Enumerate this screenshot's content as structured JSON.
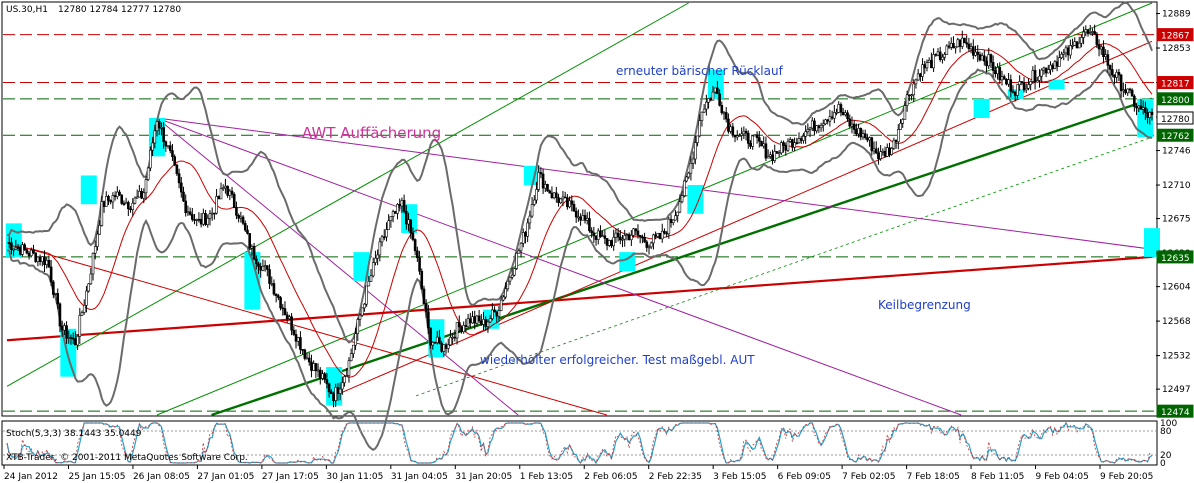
{
  "header": {
    "symbol": "US.30,H1",
    "ohlc": "12780 12784 12777 12780"
  },
  "annotations": {
    "awt": "AWT Auffächerung",
    "baerisch": "erneuter bärischer Rücklauf",
    "test": "wiederholter erfolgreicher. Test maßgebl. AUT",
    "keil": "Keilbegrenzung"
  },
  "stoch": {
    "label": "Stoch(5,3,3) 38.1443 35.0449",
    "levels": [
      "100",
      "80",
      "20",
      "0"
    ]
  },
  "footer": {
    "copyright": "XTB-Trader, © 2001-2011 MetaQuotes Software Corp."
  },
  "colors": {
    "candle": "#000000",
    "grid_dashed_green": "#006400",
    "resistance_red": "#cc0000",
    "trend_green": "#007000",
    "channel_green": "#009000",
    "fan_magenta": "#a020a0",
    "bollinger": "#6b6b6b",
    "ma_red": "#cc0000",
    "highlight_cyan": "#00ffff",
    "label_box_green": "#006400",
    "label_box_red": "#cc0000",
    "label_box_black": "#000000",
    "annotation_blue": "#1f3fcc",
    "annotation_magenta": "#cc3399"
  },
  "chart_data": {
    "type": "candlestick",
    "symbol": "US.30",
    "timeframe": "H1",
    "ylim": [
      12470,
      12900
    ],
    "y_ticks": [
      12889,
      12853,
      12817,
      12781,
      12746,
      12710,
      12675,
      12639,
      12604,
      12568,
      12532,
      12497
    ],
    "x_ticks": [
      "24 Jan 2012",
      "25 Jan 15:05",
      "26 Jan 08:05",
      "27 Jan 01:05",
      "27 Jan 17:05",
      "30 Jan 11:05",
      "31 Jan 04:05",
      "31 Jan 20:05",
      "1 Feb 13:05",
      "2 Feb 06:05",
      "2 Feb 22:35",
      "3 Feb 15:05",
      "6 Feb 09:05",
      "7 Feb 02:05",
      "7 Feb 18:05",
      "8 Feb 11:05",
      "9 Feb 04:05",
      "9 Feb 20:05"
    ],
    "levels": [
      {
        "value": 12867,
        "label": "12867",
        "color": "red"
      },
      {
        "value": 12817,
        "label": "12817",
        "color": "red"
      },
      {
        "value": 12800,
        "label": "12800",
        "color": "green"
      },
      {
        "value": 12780,
        "label": "12780",
        "color": "black"
      },
      {
        "value": 12762,
        "label": "12762",
        "color": "green"
      },
      {
        "value": 12635,
        "label": "12635",
        "color": "green"
      },
      {
        "value": 12474,
        "label": "12474",
        "color": "green"
      }
    ],
    "price_path": [
      [
        0,
        12650
      ],
      [
        3,
        12640
      ],
      [
        6,
        12630
      ],
      [
        8,
        12560
      ],
      [
        10,
        12545
      ],
      [
        12,
        12610
      ],
      [
        14,
        12690
      ],
      [
        16,
        12700
      ],
      [
        18,
        12690
      ],
      [
        20,
        12700
      ],
      [
        22,
        12780
      ],
      [
        24,
        12740
      ],
      [
        26,
        12690
      ],
      [
        28,
        12670
      ],
      [
        30,
        12680
      ],
      [
        32,
        12710
      ],
      [
        34,
        12680
      ],
      [
        36,
        12640
      ],
      [
        38,
        12620
      ],
      [
        40,
        12590
      ],
      [
        42,
        12560
      ],
      [
        44,
        12530
      ],
      [
        46,
        12510
      ],
      [
        48,
        12490
      ],
      [
        50,
        12520
      ],
      [
        52,
        12580
      ],
      [
        54,
        12630
      ],
      [
        56,
        12670
      ],
      [
        58,
        12690
      ],
      [
        60,
        12640
      ],
      [
        62,
        12550
      ],
      [
        64,
        12540
      ],
      [
        66,
        12560
      ],
      [
        68,
        12570
      ],
      [
        70,
        12565
      ],
      [
        72,
        12580
      ],
      [
        74,
        12620
      ],
      [
        76,
        12660
      ],
      [
        78,
        12720
      ],
      [
        80,
        12700
      ],
      [
        82,
        12690
      ],
      [
        84,
        12680
      ],
      [
        86,
        12660
      ],
      [
        88,
        12650
      ],
      [
        90,
        12655
      ],
      [
        92,
        12660
      ],
      [
        94,
        12650
      ],
      [
        96,
        12655
      ],
      [
        98,
        12680
      ],
      [
        100,
        12720
      ],
      [
        102,
        12790
      ],
      [
        104,
        12810
      ],
      [
        106,
        12770
      ],
      [
        108,
        12760
      ],
      [
        110,
        12755
      ],
      [
        112,
        12740
      ],
      [
        114,
        12750
      ],
      [
        116,
        12760
      ],
      [
        118,
        12770
      ],
      [
        120,
        12780
      ],
      [
        122,
        12790
      ],
      [
        124,
        12770
      ],
      [
        126,
        12760
      ],
      [
        128,
        12740
      ],
      [
        130,
        12750
      ],
      [
        132,
        12800
      ],
      [
        134,
        12830
      ],
      [
        136,
        12840
      ],
      [
        138,
        12850
      ],
      [
        140,
        12860
      ],
      [
        142,
        12850
      ],
      [
        144,
        12840
      ],
      [
        146,
        12820
      ],
      [
        148,
        12810
      ],
      [
        150,
        12820
      ],
      [
        152,
        12830
      ],
      [
        154,
        12840
      ],
      [
        156,
        12850
      ],
      [
        158,
        12870
      ],
      [
        160,
        12860
      ],
      [
        162,
        12830
      ],
      [
        164,
        12810
      ],
      [
        166,
        12790
      ],
      [
        168,
        12780
      ]
    ],
    "cyan_highlights": [
      {
        "x": 1,
        "ylo": 12635,
        "yhi": 12670
      },
      {
        "x": 9,
        "ylo": 12510,
        "yhi": 12560
      },
      {
        "x": 12,
        "ylo": 12690,
        "yhi": 12720
      },
      {
        "x": 22,
        "ylo": 12740,
        "yhi": 12780
      },
      {
        "x": 36,
        "ylo": 12580,
        "yhi": 12640
      },
      {
        "x": 48,
        "ylo": 12480,
        "yhi": 12520
      },
      {
        "x": 52,
        "ylo": 12610,
        "yhi": 12640
      },
      {
        "x": 59,
        "ylo": 12660,
        "yhi": 12690
      },
      {
        "x": 63,
        "ylo": 12530,
        "yhi": 12570
      },
      {
        "x": 71,
        "ylo": 12560,
        "yhi": 12580
      },
      {
        "x": 77,
        "ylo": 12710,
        "yhi": 12730
      },
      {
        "x": 91,
        "ylo": 12620,
        "yhi": 12640
      },
      {
        "x": 101,
        "ylo": 12680,
        "yhi": 12710
      },
      {
        "x": 104,
        "ylo": 12800,
        "yhi": 12830
      },
      {
        "x": 143,
        "ylo": 12780,
        "yhi": 12800
      },
      {
        "x": 148,
        "ylo": 12800,
        "yhi": 12810
      },
      {
        "x": 154,
        "ylo": 12810,
        "yhi": 12820
      },
      {
        "x": 167,
        "ylo": 12760,
        "yhi": 12800
      },
      {
        "x": 168,
        "ylo": 12635,
        "yhi": 12665
      }
    ]
  }
}
